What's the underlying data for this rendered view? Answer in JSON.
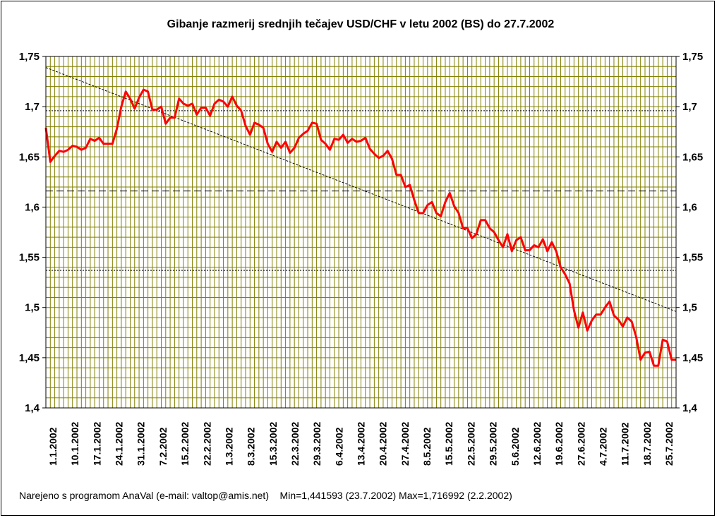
{
  "chart_data": {
    "type": "line",
    "title": "Gibanje razmerij srednjih tečajev USD/CHF v letu 2002 (BS) do 27.7.2002",
    "ylim": [
      1.4,
      1.75
    ],
    "yticks": [
      "1,75",
      "1,7",
      "1,65",
      "1,6",
      "1,55",
      "1,5",
      "1,45",
      "1,4"
    ],
    "ytick_values": [
      1.75,
      1.7,
      1.65,
      1.6,
      1.55,
      1.5,
      1.45,
      1.4
    ],
    "xticks": [
      "1.1.2002",
      "10.1.2002",
      "17.1.2002",
      "24.1.2002",
      "31.1.2002",
      "7.2.2002",
      "15.2.2002",
      "22.2.2002",
      "1.3.2002",
      "8.3.2002",
      "15.3.2002",
      "22.3.2002",
      "29.3.2002",
      "6.4.2002",
      "13.4.2002",
      "20.4.2002",
      "27.4.2002",
      "8.5.2002",
      "15.5.2002",
      "22.5.2002",
      "29.5.2002",
      "5.6.2002",
      "12.6.2002",
      "19.6.2002",
      "27.6.2002",
      "4.7.2002",
      "11.7.2002",
      "18.7.2002",
      "25.7.2002"
    ],
    "grid": true,
    "series": [
      {
        "color": "#ff0000",
        "values": [
          1.679,
          1.645,
          1.651,
          1.656,
          1.655,
          1.657,
          1.661,
          1.66,
          1.657,
          1.659,
          1.668,
          1.666,
          1.669,
          1.663,
          1.663,
          1.663,
          1.678,
          1.7,
          1.715,
          1.708,
          1.698,
          1.709,
          1.717,
          1.715,
          1.697,
          1.697,
          1.7,
          1.683,
          1.689,
          1.689,
          1.708,
          1.703,
          1.701,
          1.703,
          1.692,
          1.699,
          1.699,
          1.691,
          1.703,
          1.707,
          1.705,
          1.7,
          1.71,
          1.701,
          1.696,
          1.681,
          1.672,
          1.684,
          1.682,
          1.679,
          1.663,
          1.655,
          1.665,
          1.659,
          1.665,
          1.654,
          1.659,
          1.669,
          1.673,
          1.676,
          1.684,
          1.683,
          1.667,
          1.663,
          1.657,
          1.668,
          1.667,
          1.672,
          1.664,
          1.668,
          1.665,
          1.666,
          1.669,
          1.658,
          1.653,
          1.649,
          1.651,
          1.656,
          1.648,
          1.632,
          1.632,
          1.62,
          1.622,
          1.607,
          1.594,
          1.594,
          1.602,
          1.605,
          1.594,
          1.591,
          1.605,
          1.614,
          1.601,
          1.594,
          1.579,
          1.579,
          1.569,
          1.573,
          1.587,
          1.587,
          1.579,
          1.575,
          1.567,
          1.56,
          1.573,
          1.556,
          1.567,
          1.57,
          1.557,
          1.557,
          1.562,
          1.56,
          1.568,
          1.556,
          1.565,
          1.556,
          1.54,
          1.533,
          1.524,
          1.497,
          1.48,
          1.495,
          1.477,
          1.487,
          1.493,
          1.493,
          1.5,
          1.506,
          1.492,
          1.488,
          1.481,
          1.49,
          1.486,
          1.471,
          1.448,
          1.455,
          1.456,
          1.442,
          1.442,
          1.468,
          1.466,
          1.448,
          1.448
        ]
      }
    ],
    "trend": {
      "start": 1.739,
      "end": 1.496,
      "color": "#000000"
    },
    "reference_lines": [
      {
        "value": 1.696,
        "style": "dotted"
      },
      {
        "value": 1.616,
        "style": "dashed"
      },
      {
        "value": 1.537,
        "style": "dotted"
      }
    ],
    "plot_bg": "#ffffff",
    "grid_color": "#808000",
    "footer": "Narejeno s programom AnaVal (e-mail: valtop@amis.net)    Min=1,441593 (23.7.2002) Max=1,716992 (2.2.2002)"
  }
}
